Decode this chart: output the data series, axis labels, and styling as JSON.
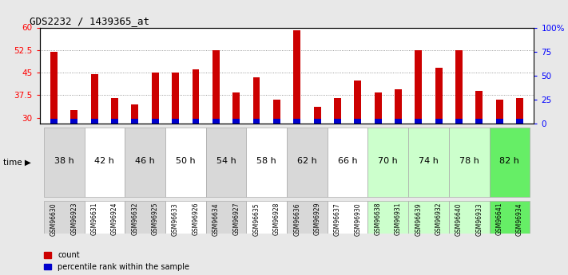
{
  "title": "GDS2232 / 1439365_at",
  "samples": [
    "GSM96630",
    "GSM96923",
    "GSM96631",
    "GSM96924",
    "GSM96632",
    "GSM96925",
    "GSM96633",
    "GSM96926",
    "GSM96634",
    "GSM96927",
    "GSM96635",
    "GSM96928",
    "GSM96636",
    "GSM96929",
    "GSM96637",
    "GSM96930",
    "GSM96638",
    "GSM96931",
    "GSM96639",
    "GSM96932",
    "GSM96640",
    "GSM96933",
    "GSM96641",
    "GSM96934"
  ],
  "time_groups": [
    {
      "label": "38 h",
      "indices": [
        0,
        1
      ]
    },
    {
      "label": "42 h",
      "indices": [
        2,
        3
      ]
    },
    {
      "label": "46 h",
      "indices": [
        4,
        5
      ]
    },
    {
      "label": "50 h",
      "indices": [
        6,
        7
      ]
    },
    {
      "label": "54 h",
      "indices": [
        8,
        9
      ]
    },
    {
      "label": "58 h",
      "indices": [
        10,
        11
      ]
    },
    {
      "label": "62 h",
      "indices": [
        12,
        13
      ]
    },
    {
      "label": "66 h",
      "indices": [
        14,
        15
      ]
    },
    {
      "label": "70 h",
      "indices": [
        16,
        17
      ]
    },
    {
      "label": "74 h",
      "indices": [
        18,
        19
      ]
    },
    {
      "label": "78 h",
      "indices": [
        20,
        21
      ]
    },
    {
      "label": "82 h",
      "indices": [
        22,
        23
      ]
    }
  ],
  "time_row_colors": [
    "#d8d8d8",
    "#d8d8d8",
    "#ffffff",
    "#ffffff",
    "#d8d8d8",
    "#d8d8d8",
    "#ffffff",
    "#ffffff",
    "#d8d8d8",
    "#d8d8d8",
    "#ffffff",
    "#ffffff",
    "#d8d8d8",
    "#d8d8d8",
    "#ffffff",
    "#ffffff",
    "#ccffcc",
    "#ccffcc",
    "#ccffcc",
    "#ccffcc",
    "#ccffcc",
    "#ccffcc",
    "#66ee66",
    "#66ee66"
  ],
  "time_group_colors": [
    "#d8d8d8",
    "#ffffff",
    "#d8d8d8",
    "#ffffff",
    "#d8d8d8",
    "#ffffff",
    "#d8d8d8",
    "#ffffff",
    "#ccffcc",
    "#ccffcc",
    "#ccffcc",
    "#66ee66"
  ],
  "count_values": [
    52.0,
    32.5,
    44.5,
    36.5,
    34.5,
    45.0,
    45.0,
    46.0,
    52.5,
    38.5,
    43.5,
    36.0,
    59.0,
    33.5,
    36.5,
    42.5,
    38.5,
    39.5,
    52.5,
    46.5,
    52.5,
    39.0,
    36.0,
    36.5
  ],
  "percentile_values": [
    5,
    5,
    5,
    5,
    5,
    5,
    5,
    5,
    5,
    5,
    5,
    5,
    5,
    5,
    5,
    5,
    5,
    5,
    5,
    5,
    5,
    5,
    5,
    5
  ],
  "bar_color_red": "#cc0000",
  "bar_color_blue": "#0000cc",
  "ymin": 28,
  "ymax": 60,
  "yleft_ticks": [
    30,
    37.5,
    45,
    52.5,
    60
  ],
  "yright_ticks": [
    0,
    25,
    50,
    75,
    100
  ],
  "yright_labels": [
    "0",
    "25",
    "50",
    "75",
    "100%"
  ],
  "bg_color": "#e8e8e8",
  "plot_bg_color": "#ffffff",
  "bar_width": 0.35
}
